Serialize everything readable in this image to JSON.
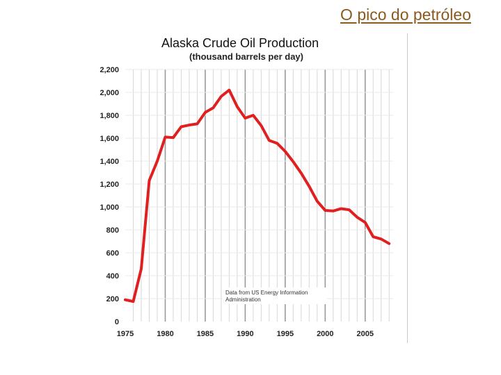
{
  "slide": {
    "title": "O pico do petróleo"
  },
  "chart_data": {
    "type": "line",
    "title": "Alaska Crude Oil Production",
    "subtitle": "(thousand barrels per day)",
    "xlabel": "",
    "ylabel": "",
    "xlim": [
      1975,
      2008
    ],
    "ylim": [
      0,
      2200
    ],
    "grid": true,
    "yticks": [
      0,
      200,
      400,
      600,
      800,
      1000,
      1200,
      1400,
      1600,
      1800,
      2000,
      2200
    ],
    "ytick_labels": [
      "0",
      "200",
      "400",
      "600",
      "800",
      "1,000",
      "1,200",
      "1,400",
      "1,600",
      "1,800",
      "2,000",
      "2,200"
    ],
    "xticks": [
      1975,
      1980,
      1985,
      1990,
      1995,
      2000,
      2005
    ],
    "xtick_labels": [
      "1975",
      "1980",
      "1985",
      "1990",
      "1995",
      "2000",
      "2005"
    ],
    "line_color": "#e02020",
    "annotation": [
      "Data from US Energy Information",
      "Administration"
    ],
    "series": [
      {
        "x": [
          1975,
          1976,
          1977,
          1978,
          1979,
          1980,
          1981,
          1982,
          1983,
          1984,
          1985,
          1986,
          1987,
          1988,
          1989,
          1990,
          1991,
          1992,
          1993,
          1994,
          1995,
          1996,
          1997,
          1998,
          1999,
          2000,
          2001,
          2002,
          2003,
          2004,
          2005,
          2006,
          2007,
          2008
        ],
        "values": [
          190,
          175,
          460,
          1230,
          1400,
          1610,
          1605,
          1700,
          1715,
          1725,
          1825,
          1865,
          1965,
          2020,
          1875,
          1775,
          1800,
          1710,
          1580,
          1555,
          1485,
          1395,
          1295,
          1180,
          1050,
          970,
          965,
          985,
          975,
          910,
          865,
          740,
          720,
          680
        ]
      }
    ]
  }
}
